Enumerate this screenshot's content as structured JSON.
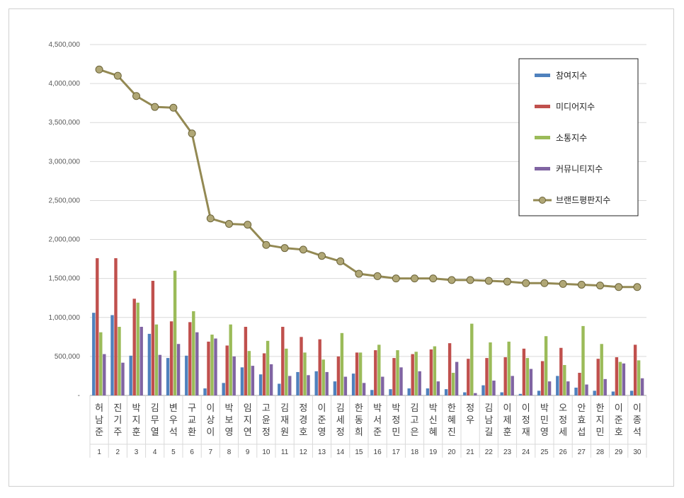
{
  "chart_data": {
    "type": "bar",
    "categories": [
      "허남준",
      "진기주",
      "박지훈",
      "김무열",
      "변우석",
      "구교환",
      "이상이",
      "박보영",
      "임지연",
      "고윤정",
      "김재원",
      "정경호",
      "이준영",
      "김세정",
      "한동희",
      "박서준",
      "박정민",
      "김고은",
      "박신혜",
      "한혜진",
      "정우",
      "김남길",
      "이제훈",
      "이정재",
      "박민영",
      "오정세",
      "안효섭",
      "한지민",
      "이준호",
      "이종석"
    ],
    "ranks": [
      "1",
      "2",
      "3",
      "4",
      "5",
      "6",
      "7",
      "8",
      "9",
      "10",
      "11",
      "12",
      "13",
      "14",
      "15",
      "16",
      "17",
      "18",
      "19",
      "20",
      "21",
      "22",
      "23",
      "24",
      "25",
      "26",
      "27",
      "28",
      "29",
      "30"
    ],
    "ylim": [
      0,
      4500000
    ],
    "yticks": [
      0,
      500000,
      1000000,
      1500000,
      2000000,
      2500000,
      3000000,
      3500000,
      4000000,
      4500000
    ],
    "ytick_labels": [
      "-",
      "500,000",
      "1,000,000",
      "1,500,000",
      "2,000,000",
      "2,500,000",
      "3,000,000",
      "3,500,000",
      "4,000,000",
      "4,500,000"
    ],
    "grid": true,
    "legend_position": "top-right",
    "series": [
      {
        "name": "참여지수",
        "type": "bar",
        "color": "#4f81bd",
        "values": [
          1060000,
          1030000,
          510000,
          790000,
          480000,
          510000,
          90000,
          160000,
          360000,
          270000,
          150000,
          300000,
          310000,
          180000,
          280000,
          70000,
          80000,
          90000,
          90000,
          80000,
          40000,
          130000,
          40000,
          20000,
          60000,
          250000,
          100000,
          60000,
          50000,
          60000
        ]
      },
      {
        "name": "미디어지수",
        "type": "bar",
        "color": "#c0504d",
        "values": [
          1760000,
          1760000,
          1240000,
          1470000,
          950000,
          940000,
          690000,
          640000,
          880000,
          540000,
          880000,
          750000,
          720000,
          500000,
          550000,
          580000,
          480000,
          530000,
          590000,
          670000,
          470000,
          480000,
          490000,
          600000,
          440000,
          610000,
          290000,
          470000,
          490000,
          650000
        ]
      },
      {
        "name": "소통지수",
        "type": "bar",
        "color": "#9bbb59",
        "values": [
          810000,
          880000,
          1190000,
          910000,
          1600000,
          1080000,
          780000,
          910000,
          570000,
          700000,
          600000,
          550000,
          460000,
          800000,
          550000,
          650000,
          580000,
          560000,
          630000,
          290000,
          920000,
          680000,
          690000,
          480000,
          760000,
          390000,
          890000,
          660000,
          430000,
          450000
        ]
      },
      {
        "name": "커뮤니티지수",
        "type": "bar",
        "color": "#8064a2",
        "values": [
          530000,
          420000,
          880000,
          520000,
          660000,
          810000,
          730000,
          500000,
          380000,
          400000,
          250000,
          260000,
          300000,
          240000,
          160000,
          240000,
          360000,
          310000,
          180000,
          430000,
          30000,
          190000,
          250000,
          340000,
          180000,
          180000,
          140000,
          210000,
          410000,
          220000
        ]
      },
      {
        "name": "브랜드평판지수",
        "type": "line",
        "color": "#938953",
        "values": [
          4180000,
          4100000,
          3840000,
          3700000,
          3690000,
          3360000,
          2270000,
          2200000,
          2190000,
          1930000,
          1890000,
          1870000,
          1790000,
          1720000,
          1560000,
          1530000,
          1500000,
          1500000,
          1500000,
          1480000,
          1480000,
          1470000,
          1460000,
          1440000,
          1440000,
          1430000,
          1420000,
          1410000,
          1390000,
          1390000
        ]
      }
    ]
  }
}
